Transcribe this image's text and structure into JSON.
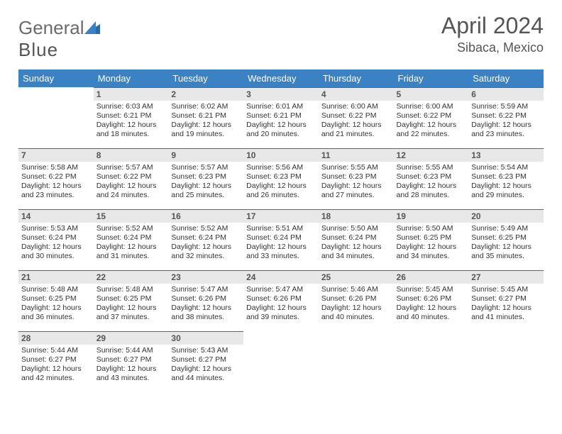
{
  "brand": {
    "part1": "General",
    "part2": "Blue"
  },
  "title": "April 2024",
  "location": "Sibaca, Mexico",
  "colors": {
    "header_bg": "#3b82c4",
    "header_text": "#ffffff",
    "day_header_bg": "#e8e8e8",
    "day_header_border": "#3b6ea0",
    "body_text": "#333333",
    "title_text": "#555555"
  },
  "weekdays": [
    "Sunday",
    "Monday",
    "Tuesday",
    "Wednesday",
    "Thursday",
    "Friday",
    "Saturday"
  ],
  "weeks": [
    [
      null,
      {
        "n": "1",
        "sr": "6:03 AM",
        "ss": "6:21 PM",
        "dl": "12 hours and 18 minutes."
      },
      {
        "n": "2",
        "sr": "6:02 AM",
        "ss": "6:21 PM",
        "dl": "12 hours and 19 minutes."
      },
      {
        "n": "3",
        "sr": "6:01 AM",
        "ss": "6:21 PM",
        "dl": "12 hours and 20 minutes."
      },
      {
        "n": "4",
        "sr": "6:00 AM",
        "ss": "6:22 PM",
        "dl": "12 hours and 21 minutes."
      },
      {
        "n": "5",
        "sr": "6:00 AM",
        "ss": "6:22 PM",
        "dl": "12 hours and 22 minutes."
      },
      {
        "n": "6",
        "sr": "5:59 AM",
        "ss": "6:22 PM",
        "dl": "12 hours and 23 minutes."
      }
    ],
    [
      {
        "n": "7",
        "sr": "5:58 AM",
        "ss": "6:22 PM",
        "dl": "12 hours and 23 minutes."
      },
      {
        "n": "8",
        "sr": "5:57 AM",
        "ss": "6:22 PM",
        "dl": "12 hours and 24 minutes."
      },
      {
        "n": "9",
        "sr": "5:57 AM",
        "ss": "6:23 PM",
        "dl": "12 hours and 25 minutes."
      },
      {
        "n": "10",
        "sr": "5:56 AM",
        "ss": "6:23 PM",
        "dl": "12 hours and 26 minutes."
      },
      {
        "n": "11",
        "sr": "5:55 AM",
        "ss": "6:23 PM",
        "dl": "12 hours and 27 minutes."
      },
      {
        "n": "12",
        "sr": "5:55 AM",
        "ss": "6:23 PM",
        "dl": "12 hours and 28 minutes."
      },
      {
        "n": "13",
        "sr": "5:54 AM",
        "ss": "6:23 PM",
        "dl": "12 hours and 29 minutes."
      }
    ],
    [
      {
        "n": "14",
        "sr": "5:53 AM",
        "ss": "6:24 PM",
        "dl": "12 hours and 30 minutes."
      },
      {
        "n": "15",
        "sr": "5:52 AM",
        "ss": "6:24 PM",
        "dl": "12 hours and 31 minutes."
      },
      {
        "n": "16",
        "sr": "5:52 AM",
        "ss": "6:24 PM",
        "dl": "12 hours and 32 minutes."
      },
      {
        "n": "17",
        "sr": "5:51 AM",
        "ss": "6:24 PM",
        "dl": "12 hours and 33 minutes."
      },
      {
        "n": "18",
        "sr": "5:50 AM",
        "ss": "6:24 PM",
        "dl": "12 hours and 34 minutes."
      },
      {
        "n": "19",
        "sr": "5:50 AM",
        "ss": "6:25 PM",
        "dl": "12 hours and 34 minutes."
      },
      {
        "n": "20",
        "sr": "5:49 AM",
        "ss": "6:25 PM",
        "dl": "12 hours and 35 minutes."
      }
    ],
    [
      {
        "n": "21",
        "sr": "5:48 AM",
        "ss": "6:25 PM",
        "dl": "12 hours and 36 minutes."
      },
      {
        "n": "22",
        "sr": "5:48 AM",
        "ss": "6:25 PM",
        "dl": "12 hours and 37 minutes."
      },
      {
        "n": "23",
        "sr": "5:47 AM",
        "ss": "6:26 PM",
        "dl": "12 hours and 38 minutes."
      },
      {
        "n": "24",
        "sr": "5:47 AM",
        "ss": "6:26 PM",
        "dl": "12 hours and 39 minutes."
      },
      {
        "n": "25",
        "sr": "5:46 AM",
        "ss": "6:26 PM",
        "dl": "12 hours and 40 minutes."
      },
      {
        "n": "26",
        "sr": "5:45 AM",
        "ss": "6:26 PM",
        "dl": "12 hours and 40 minutes."
      },
      {
        "n": "27",
        "sr": "5:45 AM",
        "ss": "6:27 PM",
        "dl": "12 hours and 41 minutes."
      }
    ],
    [
      {
        "n": "28",
        "sr": "5:44 AM",
        "ss": "6:27 PM",
        "dl": "12 hours and 42 minutes."
      },
      {
        "n": "29",
        "sr": "5:44 AM",
        "ss": "6:27 PM",
        "dl": "12 hours and 43 minutes."
      },
      {
        "n": "30",
        "sr": "5:43 AM",
        "ss": "6:27 PM",
        "dl": "12 hours and 44 minutes."
      },
      null,
      null,
      null,
      null
    ]
  ],
  "labels": {
    "sunrise": "Sunrise:",
    "sunset": "Sunset:",
    "daylight": "Daylight:"
  }
}
